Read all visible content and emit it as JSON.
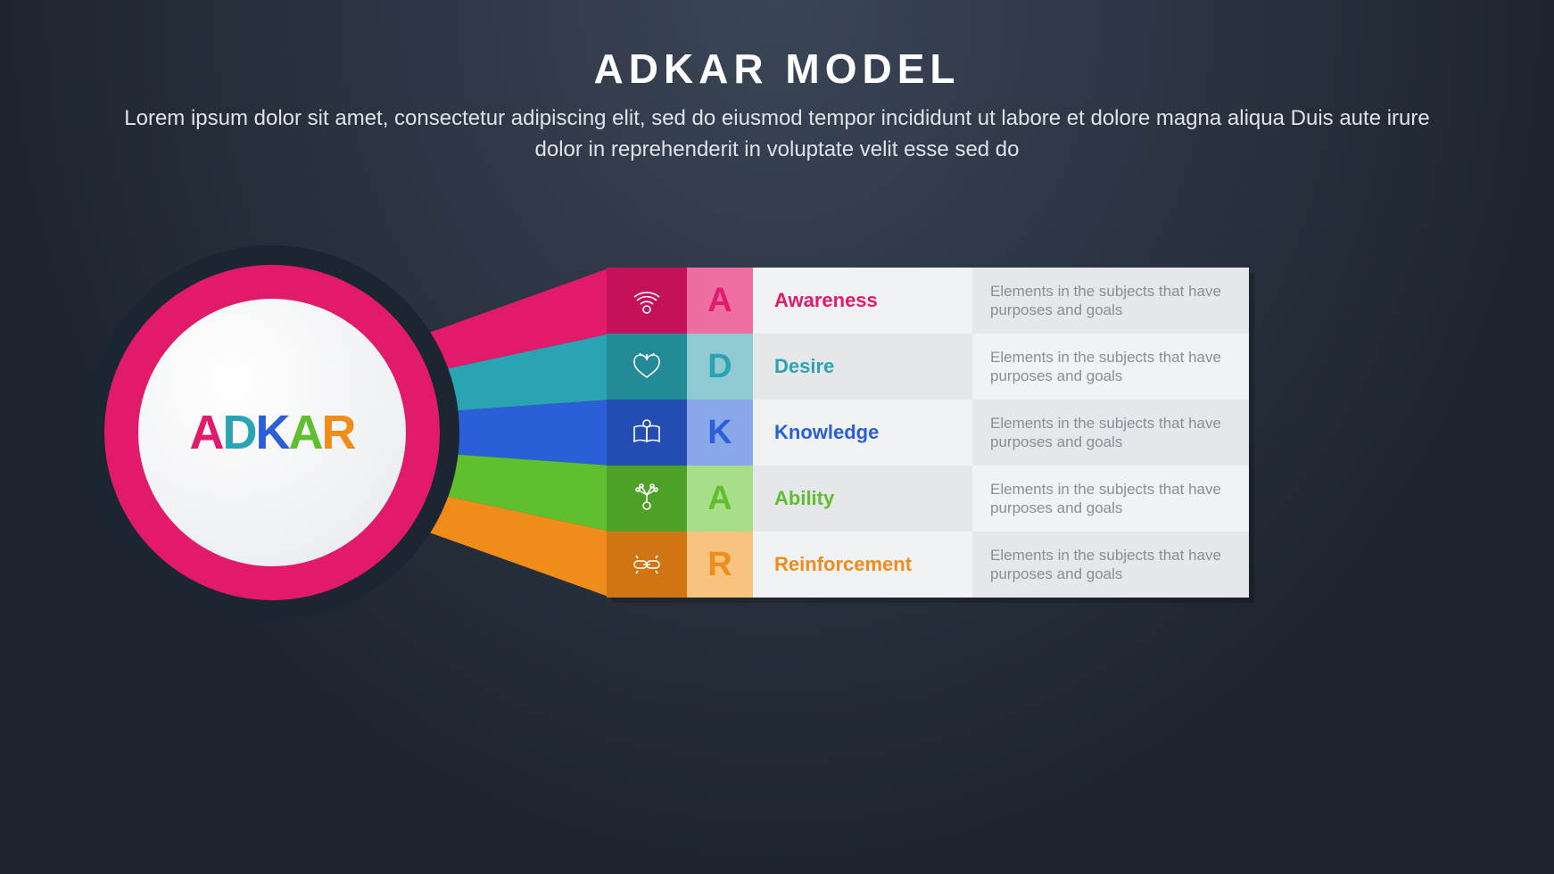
{
  "background": "#242d3a",
  "title": "ADKAR MODEL",
  "title_color": "#ffffff",
  "title_fontsize": 46,
  "subtitle": "Lorem ipsum dolor sit amet, consectetur adipiscing elit, sed do eiusmod tempor incididunt ut labore et dolore magna aliqua Duis aute irure dolor in reprehenderit in voluptate velit esse sed do",
  "subtitle_color": "#dfe3e8",
  "subtitle_fontsize": 24,
  "circle": {
    "outer_color": "#1c2532",
    "ring_color": "#e11a6b",
    "inner_color": "#f4f5f7",
    "letters": [
      {
        "char": "A",
        "color": "#e11a6b"
      },
      {
        "char": "D",
        "color": "#2aa4b3"
      },
      {
        "char": "K",
        "color": "#2b5fd8"
      },
      {
        "char": "A",
        "color": "#5fbf2f"
      },
      {
        "char": "R",
        "color": "#f08c1a"
      }
    ]
  },
  "rows": [
    {
      "letter": "A",
      "label": "Awareness",
      "desc": "Elements in the subjects that have purposes and goals",
      "base_color": "#e11a6b",
      "icon_bg": "#c41159",
      "letter_bg": "#ed6fa1",
      "letter_color": "#e11a6b",
      "title_bg": "#f1f2f4",
      "desc_bg": "#e6e7ea",
      "icon": "antenna"
    },
    {
      "letter": "D",
      "label": "Desire",
      "desc": "Elements in the subjects that have purposes and goals",
      "base_color": "#2aa4b3",
      "icon_bg": "#238a97",
      "letter_bg": "#8fc9d1",
      "letter_color": "#2aa4b3",
      "title_bg": "#e6e7ea",
      "desc_bg": "#f1f2f4",
      "icon": "heart"
    },
    {
      "letter": "K",
      "label": "Knowledge",
      "desc": "Elements in the subjects that have purposes and goals",
      "base_color": "#2b5fd8",
      "icon_bg": "#234db3",
      "letter_bg": "#8aa7ea",
      "letter_color": "#2b5fd8",
      "title_bg": "#f1f2f4",
      "desc_bg": "#e6e7ea",
      "icon": "book"
    },
    {
      "letter": "A",
      "label": "Ability",
      "desc": "Elements in the subjects that have purposes and goals",
      "base_color": "#5fbf2f",
      "icon_bg": "#4da126",
      "letter_bg": "#a8de89",
      "letter_color": "#5fbf2f",
      "title_bg": "#e6e7ea",
      "desc_bg": "#f1f2f4",
      "icon": "network"
    },
    {
      "letter": "R",
      "label": "Reinforcement",
      "desc": "Elements in the subjects that have purposes and goals",
      "base_color": "#f08c1a",
      "icon_bg": "#d07514",
      "letter_bg": "#f7c37f",
      "letter_color": "#f08c1a",
      "title_bg": "#f1f2f4",
      "desc_bg": "#e6e7ea",
      "icon": "link"
    }
  ]
}
